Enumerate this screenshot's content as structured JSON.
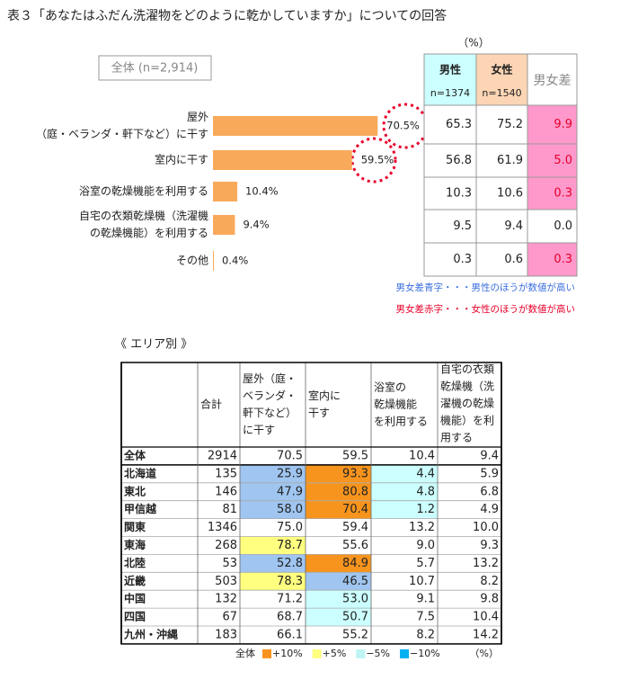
{
  "title": "表３「あなたはふだん洗濯物をどのように乾かしていますか」についての回答",
  "chart_data": {
    "type": "bar",
    "subtitle": "全体 (n=2,914)",
    "categories": [
      [
        "屋外",
        "（庭・ベランダ・軒下など）に干す"
      ],
      [
        "室内に干す"
      ],
      [
        "浴室の乾燥機能を利用する"
      ],
      [
        "自宅の衣類乾燥機（洗濯機",
        "の乾燥機能）を利用する"
      ],
      [
        "その他"
      ]
    ],
    "values": [
      70.5,
      59.5,
      10.4,
      9.4,
      0.4
    ],
    "value_labels": [
      "70.5%",
      "59.5%",
      "10.4%",
      "9.4%",
      "0.4%"
    ],
    "color": "#f9a95a"
  },
  "gender_table": {
    "unit": "（%）",
    "headers": [
      [
        "男性",
        "n=1374"
      ],
      [
        "女性",
        "n=1540"
      ],
      [
        "男女差"
      ]
    ],
    "header_colors": [
      "#ccffff",
      "#fcd5b4",
      "#ffffff"
    ],
    "rows": [
      [
        "65.3",
        "75.2",
        "9.9"
      ],
      [
        "56.8",
        "61.9",
        "5.0"
      ],
      [
        "10.3",
        "10.6",
        "0.3"
      ],
      [
        "9.5",
        "9.4",
        "0.0"
      ],
      [
        "0.3",
        "0.6",
        "0.3"
      ]
    ],
    "diff_highlight": [
      true,
      true,
      true,
      false,
      true
    ],
    "highlight_color": "#ff99cc",
    "female_color": "#e8002a",
    "notes": [
      {
        "text": "男女差青字・・・男性のほうが数値が高い",
        "color": "#3b6fe0"
      },
      {
        "text": "男女差赤字・・・女性のほうが数値が高い",
        "color": "#e8002a"
      }
    ]
  },
  "area_table": {
    "title": "《 エリア別 》",
    "headers": [
      [
        "合計"
      ],
      [
        "屋外（庭・",
        "ベランダ・",
        "軒下など）",
        "に干す"
      ],
      [
        "室内に",
        "干す"
      ],
      [
        "浴室の",
        "乾燥機能",
        "を利用する"
      ],
      [
        "自宅の衣類",
        "乾燥機（洗",
        "濯機の乾燥",
        "機能）を利",
        "用する"
      ]
    ],
    "rows": [
      {
        "name": "全体",
        "cells": [
          "2914",
          "70.5",
          "59.5",
          "10.4",
          "9.4"
        ],
        "highlight": [
          null,
          null,
          null,
          null,
          null
        ]
      },
      {
        "name": "北海道",
        "cells": [
          "135",
          "25.9",
          "93.3",
          "4.4",
          "5.9"
        ],
        "highlight": [
          null,
          3,
          0,
          2,
          null
        ]
      },
      {
        "name": "東北",
        "cells": [
          "146",
          "47.9",
          "80.8",
          "4.8",
          "6.8"
        ],
        "highlight": [
          null,
          3,
          0,
          2,
          null
        ]
      },
      {
        "name": "甲信越",
        "cells": [
          "81",
          "58.0",
          "70.4",
          "1.2",
          "4.9"
        ],
        "highlight": [
          null,
          3,
          0,
          2,
          null
        ]
      },
      {
        "name": "関東",
        "cells": [
          "1346",
          "75.0",
          "59.4",
          "13.2",
          "10.0"
        ],
        "highlight": [
          null,
          null,
          null,
          null,
          null
        ]
      },
      {
        "name": "東海",
        "cells": [
          "268",
          "78.7",
          "55.6",
          "9.0",
          "9.3"
        ],
        "highlight": [
          null,
          1,
          null,
          null,
          null
        ]
      },
      {
        "name": "北陸",
        "cells": [
          "53",
          "52.8",
          "84.9",
          "5.7",
          "13.2"
        ],
        "highlight": [
          null,
          3,
          0,
          null,
          null
        ]
      },
      {
        "name": "近畿",
        "cells": [
          "503",
          "78.3",
          "46.5",
          "10.7",
          "8.2"
        ],
        "highlight": [
          null,
          1,
          3,
          null,
          null
        ]
      },
      {
        "name": "中国",
        "cells": [
          "132",
          "71.2",
          "53.0",
          "9.1",
          "9.8"
        ],
        "highlight": [
          null,
          null,
          2,
          null,
          null
        ]
      },
      {
        "name": "四国",
        "cells": [
          "67",
          "68.7",
          "50.7",
          "7.5",
          "10.4"
        ],
        "highlight": [
          null,
          null,
          2,
          null,
          null
        ]
      },
      {
        "name": "九州・沖縄",
        "cells": [
          "183",
          "66.1",
          "55.2",
          "8.2",
          "14.2"
        ],
        "highlight": [
          null,
          null,
          null,
          null,
          null
        ]
      }
    ],
    "legend_base": "全体",
    "legend": [
      {
        "label": "+10%",
        "color": "#f7941d"
      },
      {
        "label": "+5%",
        "color": "#ffff80"
      },
      {
        "label": "−5%",
        "color": "#ccffff"
      },
      {
        "label": "−10%",
        "color": "#9fc5f0"
      }
    ],
    "unit": "（%）"
  }
}
